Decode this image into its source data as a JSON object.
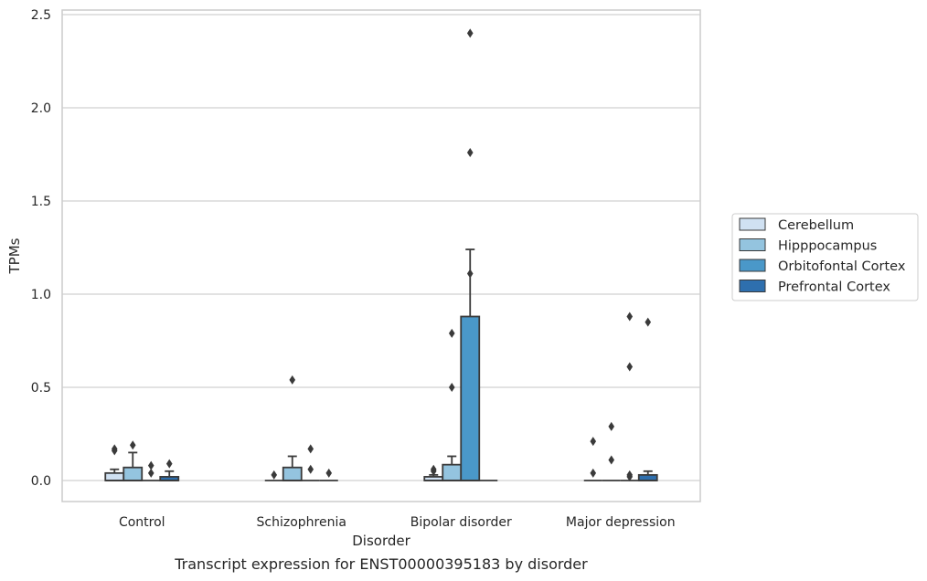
{
  "chart_data": {
    "type": "boxplot",
    "caption": "Transcript expression for ENST00000395183 by disorder",
    "xlabel": "Disorder",
    "ylabel": "TPMs",
    "ylim": [
      -0.115,
      2.53
    ],
    "yticks": [
      0.0,
      0.5,
      1.0,
      1.5,
      2.0,
      2.5
    ],
    "ytick_labels": [
      "0.0",
      "0.5",
      "1.0",
      "1.5",
      "2.0",
      "2.5"
    ],
    "grid": "horizontal",
    "legend_position": "right",
    "categories": [
      "Control",
      "Schizophrenia",
      "Bipolar disorder",
      "Major depression"
    ],
    "series": [
      {
        "name": "Cerebellum",
        "color": "#d0e1f2",
        "boxes": [
          {
            "q1": 0.0,
            "median": 0.0,
            "q3": 0.04,
            "whisker_low": 0.0,
            "whisker_high": 0.06,
            "outliers": [
              0.16,
              0.17
            ]
          },
          {
            "q1": 0.0,
            "median": 0.0,
            "q3": 0.0,
            "whisker_low": 0.0,
            "whisker_high": 0.0,
            "outliers": [
              0.03
            ]
          },
          {
            "q1": 0.0,
            "median": 0.0,
            "q3": 0.02,
            "whisker_low": 0.0,
            "whisker_high": 0.03,
            "outliers": [
              0.05,
              0.06
            ]
          },
          {
            "q1": 0.0,
            "median": 0.0,
            "q3": 0.0,
            "whisker_low": 0.0,
            "whisker_high": 0.0,
            "outliers": [
              0.04,
              0.21
            ]
          }
        ]
      },
      {
        "name": "Hipppocampus",
        "color": "#94c4df",
        "boxes": [
          {
            "q1": 0.0,
            "median": 0.0,
            "q3": 0.07,
            "whisker_low": 0.0,
            "whisker_high": 0.15,
            "outliers": [
              0.19
            ]
          },
          {
            "q1": 0.0,
            "median": 0.0,
            "q3": 0.07,
            "whisker_low": 0.0,
            "whisker_high": 0.13,
            "outliers": [
              0.54
            ]
          },
          {
            "q1": 0.0,
            "median": 0.0,
            "q3": 0.085,
            "whisker_low": 0.0,
            "whisker_high": 0.13,
            "outliers": [
              0.5,
              0.79
            ]
          },
          {
            "q1": 0.0,
            "median": 0.0,
            "q3": 0.0,
            "whisker_low": 0.0,
            "whisker_high": 0.0,
            "outliers": [
              0.11,
              0.29
            ]
          }
        ]
      },
      {
        "name": "Orbitofontal Cortex",
        "color": "#4a98c9",
        "boxes": [
          {
            "q1": 0.0,
            "median": 0.0,
            "q3": 0.0,
            "whisker_low": 0.0,
            "whisker_high": 0.0,
            "outliers": [
              0.04,
              0.08
            ]
          },
          {
            "q1": 0.0,
            "median": 0.0,
            "q3": 0.0,
            "whisker_low": 0.0,
            "whisker_high": 0.0,
            "outliers": [
              0.06,
              0.17
            ]
          },
          {
            "q1": 0.0,
            "median": 0.0,
            "q3": 0.88,
            "whisker_low": 0.0,
            "whisker_high": 1.24,
            "outliers": [
              1.11,
              1.76,
              2.4
            ]
          },
          {
            "q1": 0.0,
            "median": 0.0,
            "q3": 0.0,
            "whisker_low": 0.0,
            "whisker_high": 0.0,
            "outliers": [
              0.03,
              0.02,
              0.61,
              0.88
            ]
          }
        ]
      },
      {
        "name": "Prefrontal Cortex",
        "color": "#2e6fae",
        "boxes": [
          {
            "q1": 0.0,
            "median": 0.0,
            "q3": 0.02,
            "whisker_low": 0.0,
            "whisker_high": 0.05,
            "outliers": [
              0.09
            ]
          },
          {
            "q1": 0.0,
            "median": 0.0,
            "q3": 0.0,
            "whisker_low": 0.0,
            "whisker_high": 0.0,
            "outliers": [
              0.04
            ]
          },
          {
            "q1": 0.0,
            "median": 0.0,
            "q3": 0.0,
            "whisker_low": 0.0,
            "whisker_high": 0.0,
            "outliers": []
          },
          {
            "q1": 0.0,
            "median": 0.0,
            "q3": 0.03,
            "whisker_low": 0.0,
            "whisker_high": 0.05,
            "outliers": [
              0.85
            ]
          }
        ]
      }
    ]
  }
}
